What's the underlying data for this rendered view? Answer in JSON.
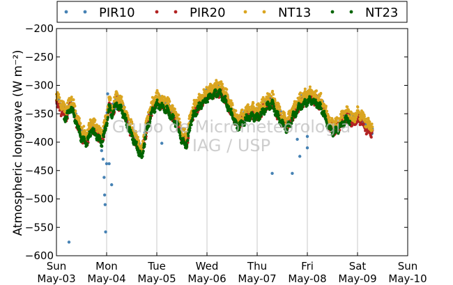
{
  "chart_data": {
    "type": "scatter",
    "ylabel": "Atmospheric longwave (W m⁻²)",
    "ylim": [
      -600,
      -200
    ],
    "yticks": [
      -200,
      -250,
      -300,
      -350,
      -400,
      -450,
      -500,
      -550,
      -600
    ],
    "xlim_days": [
      3,
      10
    ],
    "xticks": [
      {
        "day": "Sun",
        "date": "May-03"
      },
      {
        "day": "Mon",
        "date": "May-04"
      },
      {
        "day": "Tue",
        "date": "May-05"
      },
      {
        "day": "Wed",
        "date": "May-06"
      },
      {
        "day": "Thu",
        "date": "May-07"
      },
      {
        "day": "Fri",
        "date": "May-08"
      },
      {
        "day": "Sat",
        "date": "May-09"
      },
      {
        "day": "Sun",
        "date": "May-10"
      }
    ],
    "grid": "vertical",
    "legend_position": "top",
    "watermark": [
      "Grupo de Micrometeorologia",
      "IAG / USP"
    ],
    "series": [
      {
        "name": "PIR10",
        "color": "#4682b4"
      },
      {
        "name": "PIR20",
        "color": "#b22222"
      },
      {
        "name": "NT13",
        "color": "#daa520"
      },
      {
        "name": "NT23",
        "color": "#006400"
      }
    ],
    "profile": [
      [
        3.0,
        -325
      ],
      [
        3.1,
        -340
      ],
      [
        3.2,
        -350
      ],
      [
        3.3,
        -330
      ],
      [
        3.4,
        -360
      ],
      [
        3.5,
        -385
      ],
      [
        3.6,
        -395
      ],
      [
        3.7,
        -370
      ],
      [
        3.8,
        -380
      ],
      [
        3.9,
        -395
      ],
      [
        4.0,
        -360
      ],
      [
        4.05,
        -330
      ],
      [
        4.1,
        -345
      ],
      [
        4.2,
        -325
      ],
      [
        4.3,
        -335
      ],
      [
        4.4,
        -360
      ],
      [
        4.5,
        -380
      ],
      [
        4.6,
        -400
      ],
      [
        4.7,
        -420
      ],
      [
        4.8,
        -370
      ],
      [
        4.9,
        -340
      ],
      [
        5.0,
        -325
      ],
      [
        5.1,
        -330
      ],
      [
        5.2,
        -335
      ],
      [
        5.3,
        -348
      ],
      [
        5.4,
        -360
      ],
      [
        5.5,
        -390
      ],
      [
        5.6,
        -395
      ],
      [
        5.7,
        -350
      ],
      [
        5.8,
        -335
      ],
      [
        5.9,
        -325
      ],
      [
        6.0,
        -315
      ],
      [
        6.1,
        -310
      ],
      [
        6.2,
        -305
      ],
      [
        6.3,
        -310
      ],
      [
        6.4,
        -325
      ],
      [
        6.5,
        -345
      ],
      [
        6.6,
        -365
      ],
      [
        6.7,
        -360
      ],
      [
        6.8,
        -350
      ],
      [
        6.9,
        -345
      ],
      [
        7.0,
        -350
      ],
      [
        7.1,
        -340
      ],
      [
        7.2,
        -330
      ],
      [
        7.3,
        -325
      ],
      [
        7.4,
        -345
      ],
      [
        7.5,
        -360
      ],
      [
        7.6,
        -370
      ],
      [
        7.7,
        -350
      ],
      [
        7.8,
        -335
      ],
      [
        7.9,
        -325
      ],
      [
        8.0,
        -320
      ],
      [
        8.1,
        -320
      ],
      [
        8.2,
        -325
      ],
      [
        8.3,
        -335
      ],
      [
        8.4,
        -360
      ],
      [
        8.5,
        -375
      ],
      [
        8.6,
        -370
      ],
      [
        8.7,
        -360
      ],
      [
        8.8,
        -350
      ],
      [
        8.9,
        -365
      ],
      [
        9.0,
        -355
      ],
      [
        9.1,
        -360
      ],
      [
        9.2,
        -375
      ],
      [
        9.3,
        -378
      ]
    ],
    "outliers": [
      [
        3.25,
        -576
      ],
      [
        3.9,
        -415
      ],
      [
        3.93,
        -430
      ],
      [
        3.95,
        -462
      ],
      [
        3.96,
        -493
      ],
      [
        3.97,
        -510
      ],
      [
        3.98,
        -558
      ],
      [
        4.0,
        -438
      ],
      [
        4.05,
        -438
      ],
      [
        4.1,
        -475
      ],
      [
        4.02,
        -315
      ],
      [
        5.1,
        -402
      ],
      [
        7.3,
        -455
      ],
      [
        7.7,
        -455
      ],
      [
        7.85,
        -425
      ],
      [
        7.8,
        -395
      ],
      [
        8.0,
        -390
      ],
      [
        8.0,
        -410
      ]
    ]
  }
}
